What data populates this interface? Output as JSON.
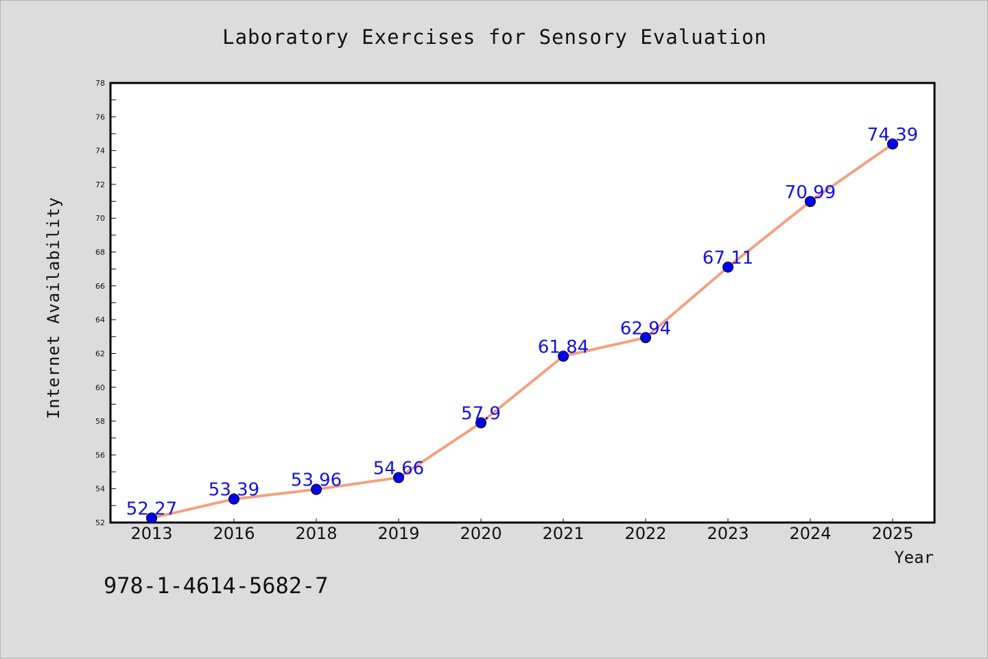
{
  "chart_data": {
    "type": "line",
    "title": "Laboratory Exercises for Sensory Evaluation",
    "xlabel": "Year",
    "ylabel": "Internet Availability",
    "categories": [
      "2013",
      "2016",
      "2018",
      "2019",
      "2020",
      "2021",
      "2022",
      "2023",
      "2024",
      "2025"
    ],
    "values": [
      52.27,
      53.39,
      53.96,
      54.66,
      57.9,
      61.84,
      62.94,
      67.11,
      70.99,
      74.39
    ],
    "data_labels": [
      "52.27",
      "53.39",
      "53.96",
      "54.66",
      "57.9",
      "61.84",
      "62.94",
      "67.11",
      "70.99",
      "74.39"
    ],
    "ylim": [
      52,
      78
    ],
    "yticks": [
      52,
      54,
      56,
      58,
      60,
      62,
      64,
      66,
      68,
      70,
      72,
      74,
      76,
      78
    ],
    "grid": false,
    "line_color": "#f4a07e",
    "marker_color": "#0000ee"
  },
  "footer": {
    "isbn": "978-1-4614-5682-7"
  }
}
